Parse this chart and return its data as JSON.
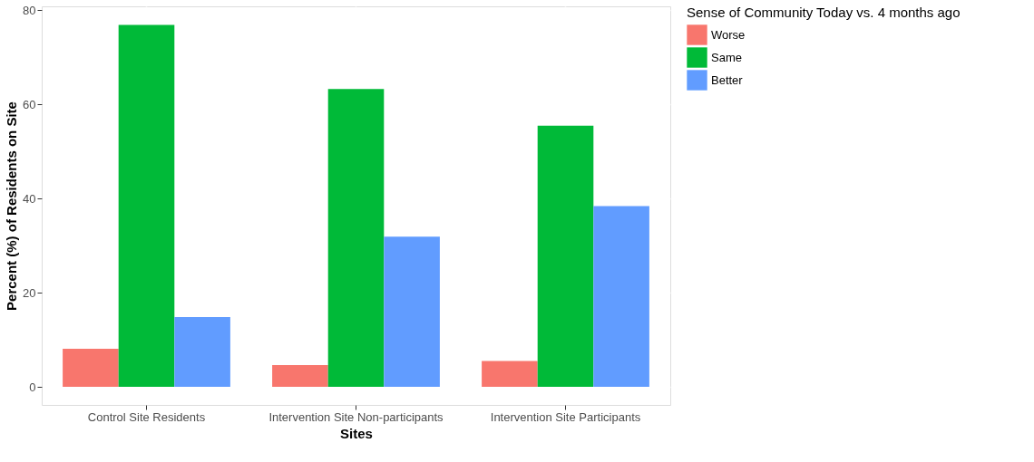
{
  "chart_data": {
    "type": "bar",
    "xlabel": "Sites",
    "ylabel": "Percent (%) of Residents on Site",
    "legend_title": "Sense of Community Today vs. 4 months ago",
    "categories": [
      "Control Site Residents",
      "Intervention Site Non-participants",
      "Intervention Site Participants"
    ],
    "series": [
      {
        "name": "Worse",
        "color": "#f8766d",
        "values": [
          8.1,
          4.6,
          5.5
        ]
      },
      {
        "name": "Same",
        "color": "#00ba38",
        "values": [
          76.9,
          63.3,
          55.5
        ]
      },
      {
        "name": "Better",
        "color": "#619cff",
        "values": [
          14.8,
          31.9,
          38.4
        ]
      }
    ],
    "ylim": [
      -3.85,
      80.85
    ],
    "yticks": [
      0,
      20,
      40,
      60,
      80
    ],
    "grid": true,
    "legend": "right"
  }
}
